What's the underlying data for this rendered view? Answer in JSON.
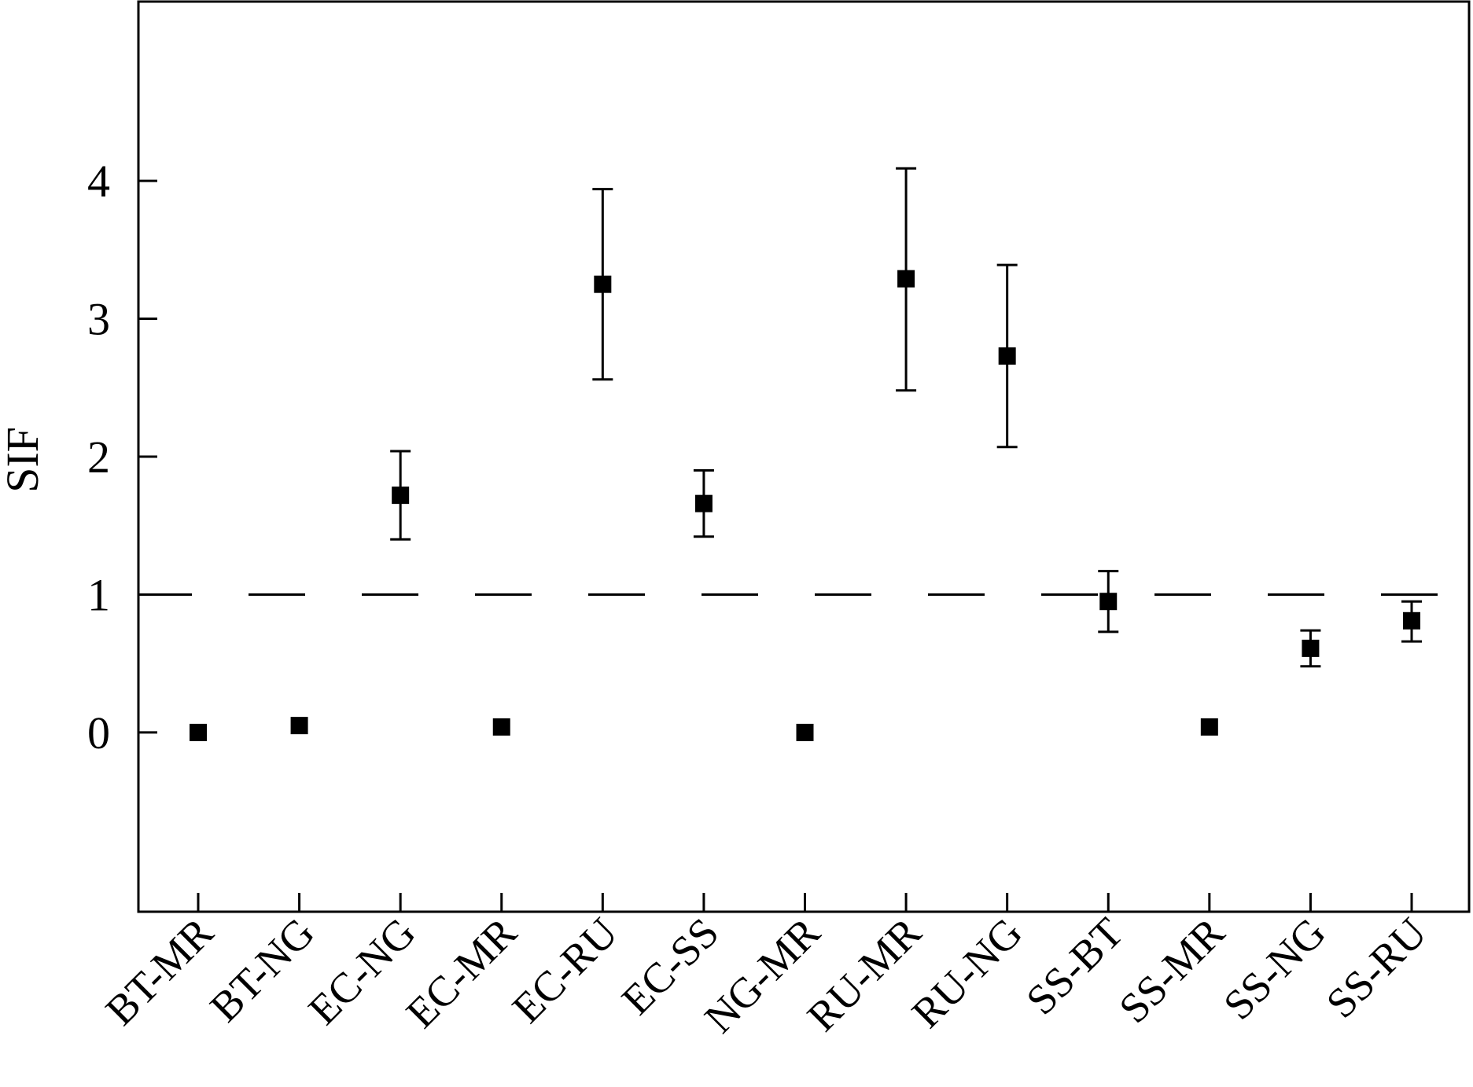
{
  "chart_data": {
    "type": "scatter",
    "ylabel": "SIF",
    "categories": [
      "BT-MR",
      "BT-NG",
      "EC-NG",
      "EC-MR",
      "EC-RU",
      "EC-SS",
      "NG-MR",
      "RU-MR",
      "RU-NG",
      "SS-BT",
      "SS-MR",
      "SS-NG",
      "SS-RU"
    ],
    "values": [
      0.0,
      0.05,
      1.72,
      0.04,
      3.25,
      1.66,
      0.0,
      3.29,
      2.73,
      0.95,
      0.04,
      0.61,
      0.81
    ],
    "err_low": [
      null,
      null,
      1.4,
      null,
      2.56,
      1.42,
      null,
      2.48,
      2.07,
      0.73,
      null,
      0.48,
      0.66
    ],
    "err_high": [
      null,
      null,
      2.04,
      null,
      3.94,
      1.9,
      null,
      4.09,
      3.39,
      1.17,
      null,
      0.74,
      0.95
    ],
    "ylim": [
      -1.3,
      5.3
    ],
    "yticks": [
      0,
      1,
      2,
      3,
      4
    ],
    "ytick_labels": [
      "0",
      "1",
      "2",
      "3",
      "4"
    ],
    "reference_line": {
      "y": 1,
      "style": "dashed"
    },
    "grid": false,
    "marker": "square",
    "color": "#000000"
  }
}
